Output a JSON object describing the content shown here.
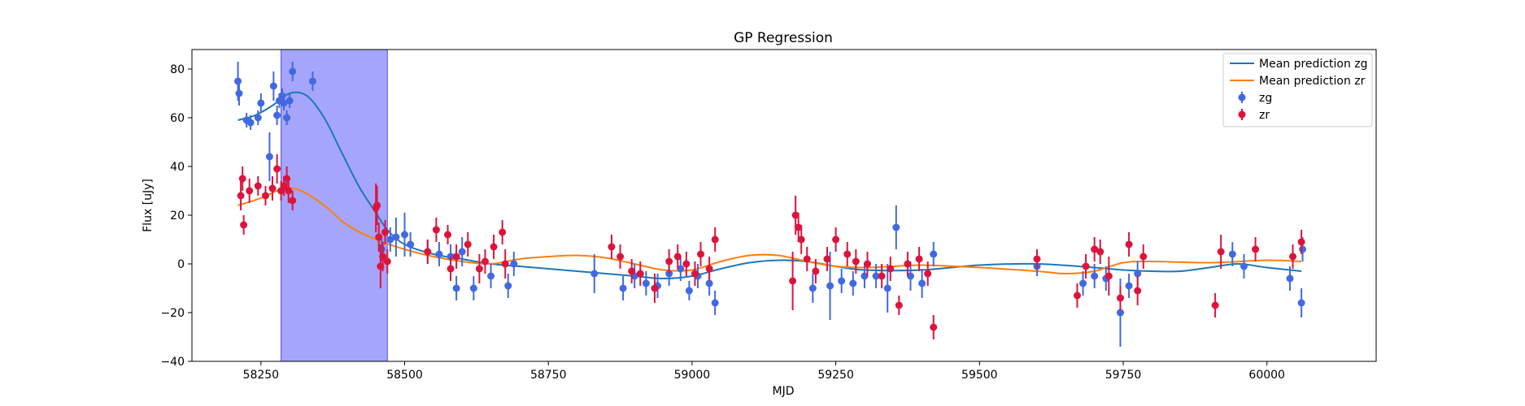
{
  "chart_data": {
    "type": "scatter",
    "title": "GP Regression",
    "xlabel": "MJD",
    "ylabel": "Flux [uJy]",
    "xlim": [
      58130,
      60190
    ],
    "ylim": [
      -40,
      88
    ],
    "xticks": [
      58250,
      58500,
      58750,
      59000,
      59250,
      59500,
      59750,
      60000
    ],
    "yticks": [
      -40,
      -20,
      0,
      20,
      40,
      60,
      80
    ],
    "grid": false,
    "legend_position": "top-right",
    "highlight_span": {
      "x0": 58285,
      "x1": 58470,
      "color": "#a5a5fb"
    },
    "series": [
      {
        "name": "Mean prediction zg",
        "kind": "line",
        "color": "#1f77b4",
        "x": [
          58210,
          58240,
          58270,
          58300,
          58330,
          58360,
          58390,
          58420,
          58450,
          58470,
          58500,
          58550,
          58600,
          58650,
          58700,
          58750,
          58800,
          58850,
          58900,
          58950,
          59000,
          59050,
          59100,
          59150,
          59200,
          59250,
          59300,
          59400,
          59500,
          59600,
          59700,
          59750,
          59800,
          59850,
          59900,
          59950,
          60000,
          60060
        ],
        "y": [
          59,
          61,
          65,
          70,
          69,
          60,
          46,
          32,
          21,
          14,
          8,
          4,
          2,
          0,
          -1,
          -2,
          -3,
          -4,
          -5,
          -6,
          -5,
          -2,
          0.5,
          1.5,
          1,
          -1,
          -2.5,
          -2.5,
          -0.5,
          0,
          -1.5,
          -2.5,
          -3,
          -3,
          -1.5,
          0,
          -1.5,
          -3
        ]
      },
      {
        "name": "Mean prediction zr",
        "kind": "line",
        "color": "#ff7f0e",
        "x": [
          58210,
          58250,
          58290,
          58320,
          58360,
          58400,
          58450,
          58500,
          58550,
          58600,
          58650,
          58700,
          58750,
          58800,
          58850,
          58900,
          58950,
          59000,
          59050,
          59100,
          59150,
          59200,
          59250,
          59300,
          59350,
          59400,
          59500,
          59600,
          59650,
          59700,
          59750,
          59800,
          59900,
          60000,
          60060
        ],
        "y": [
          24,
          27,
          31,
          30,
          24,
          16,
          10,
          6,
          3,
          1,
          0,
          2,
          3,
          3.5,
          2.5,
          0,
          -2.5,
          -2.5,
          1,
          3.5,
          3.5,
          1,
          -1,
          -1.5,
          -1,
          -0.5,
          -1.5,
          -3,
          -4,
          -3,
          0.5,
          1,
          0.5,
          1.5,
          1
        ]
      },
      {
        "name": "zg",
        "kind": "errorbar",
        "color": "#4169e1",
        "x": [
          58210,
          58212,
          58225,
          58232,
          58245,
          58250,
          58265,
          58272,
          58278,
          58282,
          58287,
          58290,
          58295,
          58300,
          58305,
          58340,
          58460,
          58475,
          58485,
          58500,
          58510,
          58540,
          58560,
          58580,
          58590,
          58600,
          58620,
          58650,
          58680,
          58690,
          58830,
          58880,
          58900,
          58920,
          58940,
          58960,
          58980,
          58995,
          59010,
          59030,
          59040,
          59210,
          59240,
          59260,
          59280,
          59300,
          59320,
          59340,
          59355,
          59380,
          59400,
          59420,
          59600,
          59680,
          59700,
          59720,
          59745,
          59760,
          59775,
          59940,
          59960,
          60040,
          60060,
          60062
        ],
        "y": [
          75,
          70,
          59,
          58,
          60,
          66,
          44,
          73,
          61,
          67,
          69,
          66,
          60,
          67,
          79,
          75,
          6,
          10,
          11,
          12,
          8,
          5,
          4,
          3,
          -10,
          5,
          -10,
          -5,
          -9,
          0,
          -4,
          -10,
          -5,
          -8,
          -9,
          -4,
          -2,
          -11,
          -5,
          -8,
          -16,
          -10,
          -9,
          -7,
          -8,
          -5,
          -5,
          -10,
          15,
          -5,
          -8,
          4,
          -1,
          -8,
          -5,
          -6,
          -20,
          -9,
          -4,
          4,
          -1,
          -6,
          -16,
          6
        ],
        "err": [
          8,
          5,
          3,
          3,
          3,
          4,
          10,
          6,
          4,
          3,
          3,
          3,
          3,
          3,
          4,
          4,
          5,
          5,
          8,
          9,
          5,
          5,
          5,
          5,
          5,
          6,
          5,
          5,
          5,
          5,
          8,
          5,
          5,
          5,
          5,
          5,
          5,
          4,
          5,
          5,
          5,
          6,
          14,
          5,
          5,
          5,
          5,
          10,
          9,
          6,
          6,
          5,
          4,
          5,
          5,
          5,
          14,
          5,
          5,
          5,
          5,
          5,
          6,
          5
        ]
      },
      {
        "name": "zr",
        "kind": "errorbar",
        "color": "#dc143c",
        "x": [
          58215,
          58218,
          58220,
          58230,
          58245,
          58258,
          58270,
          58278,
          58285,
          58290,
          58295,
          58298,
          58305,
          58450,
          58452,
          58455,
          58458,
          58462,
          58466,
          58470,
          58540,
          58555,
          58575,
          58580,
          58590,
          58610,
          58630,
          58640,
          58655,
          58670,
          58675,
          58860,
          58875,
          58895,
          58910,
          58935,
          58960,
          58975,
          58990,
          59005,
          59015,
          59030,
          59040,
          59175,
          59180,
          59185,
          59190,
          59200,
          59215,
          59235,
          59250,
          59270,
          59285,
          59305,
          59330,
          59345,
          59360,
          59375,
          59395,
          59410,
          59420,
          59600,
          59670,
          59685,
          59700,
          59710,
          59725,
          59745,
          59760,
          59775,
          59785,
          59910,
          59920,
          59980,
          60045,
          60060
        ],
        "y": [
          28,
          35,
          16,
          30,
          32,
          28,
          31,
          39,
          30,
          32,
          35,
          30,
          26,
          23,
          24,
          11,
          -1,
          3,
          13,
          1,
          5,
          14,
          12,
          -2,
          3,
          8,
          -2,
          1,
          7,
          13,
          0,
          7,
          3,
          -3,
          -4,
          -10,
          1,
          3,
          0,
          -4,
          4,
          -2,
          10,
          -7,
          20,
          15,
          10,
          2,
          -3,
          2,
          10,
          4,
          1,
          0,
          -5,
          -2,
          -17,
          0,
          2,
          -4,
          -26,
          2,
          -13,
          -1,
          6,
          5,
          -5,
          -14,
          8,
          -11,
          3,
          -17,
          5,
          6,
          3,
          9
        ],
        "err": [
          6,
          5,
          4,
          5,
          4,
          4,
          5,
          6,
          4,
          4,
          5,
          5,
          4,
          10,
          8,
          6,
          9,
          6,
          5,
          5,
          5,
          5,
          4,
          5,
          5,
          5,
          6,
          5,
          5,
          5,
          6,
          5,
          5,
          5,
          5,
          6,
          5,
          5,
          5,
          5,
          5,
          5,
          5,
          12,
          8,
          6,
          6,
          5,
          5,
          5,
          5,
          5,
          5,
          5,
          5,
          5,
          4,
          5,
          5,
          5,
          5,
          4,
          5,
          5,
          5,
          5,
          8,
          5,
          5,
          6,
          5,
          5,
          7,
          5,
          5,
          5
        ]
      }
    ]
  }
}
